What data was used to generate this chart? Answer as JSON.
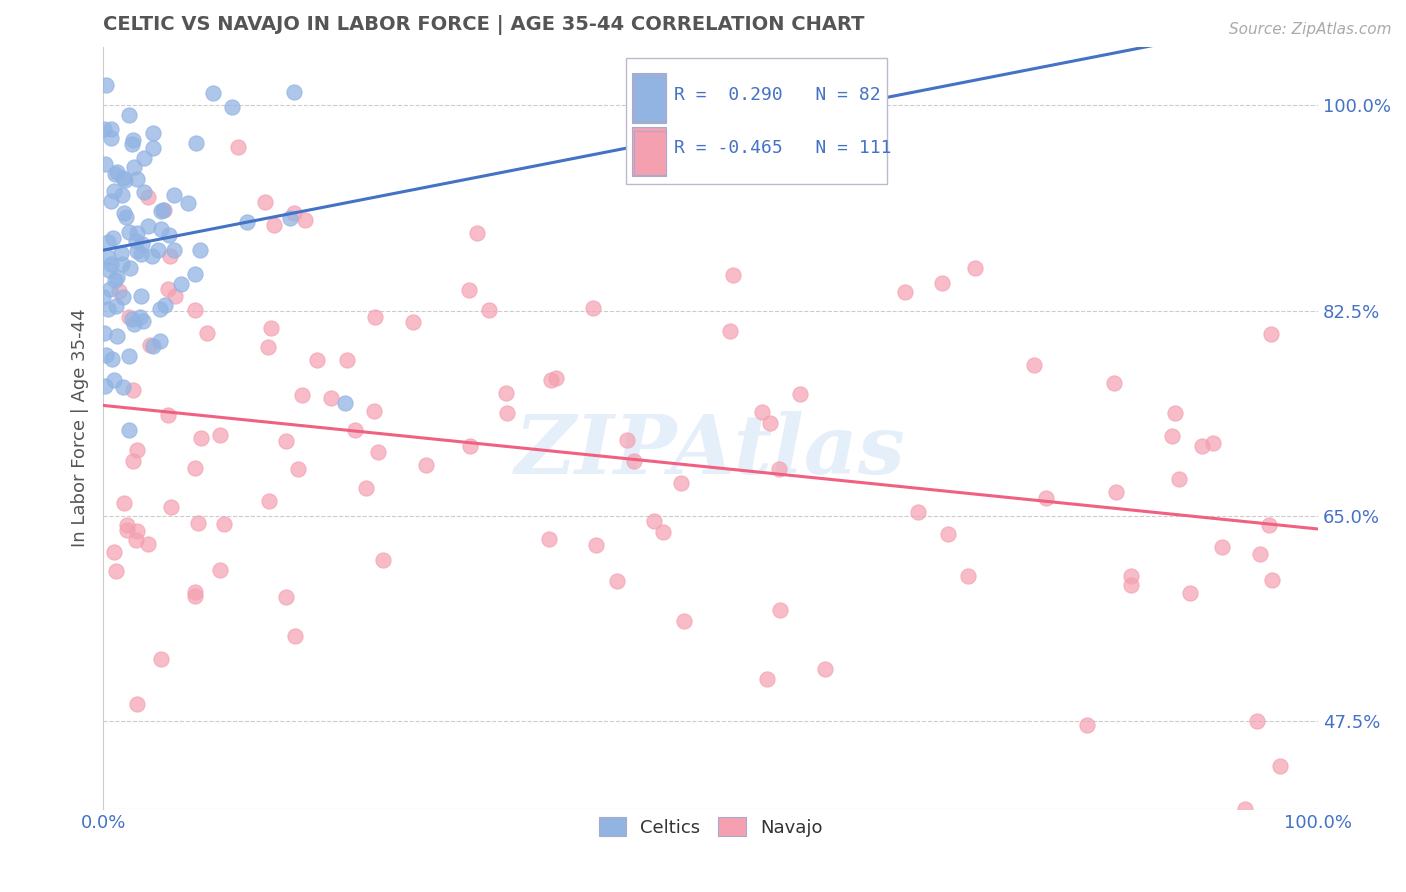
{
  "title": "CELTIC VS NAVAJO IN LABOR FORCE | AGE 35-44 CORRELATION CHART",
  "source_text": "Source: ZipAtlas.com",
  "ylabel": "In Labor Force | Age 35-44",
  "xlim": [
    0.0,
    1.0
  ],
  "ylim": [
    0.4,
    1.05
  ],
  "yticks": [
    0.475,
    0.65,
    0.825,
    1.0
  ],
  "ytick_labels": [
    "47.5%",
    "65.0%",
    "82.5%",
    "100.0%"
  ],
  "xtick_labels": [
    "0.0%",
    "",
    "",
    "",
    "100.0%"
  ],
  "celtic_color": "#92b4e3",
  "navajo_color": "#f4a0b0",
  "celtic_line_color": "#4472c4",
  "navajo_line_color": "#f06080",
  "R_celtic": 0.29,
  "N_celtic": 82,
  "R_navajo": -0.465,
  "N_navajo": 111,
  "legend_celtic": "Celtics",
  "legend_navajo": "Navajo",
  "watermark": "ZIPAtlas",
  "background_color": "#ffffff",
  "title_color": "#555555",
  "axis_color": "#4472c4",
  "ylabel_color": "#555555"
}
